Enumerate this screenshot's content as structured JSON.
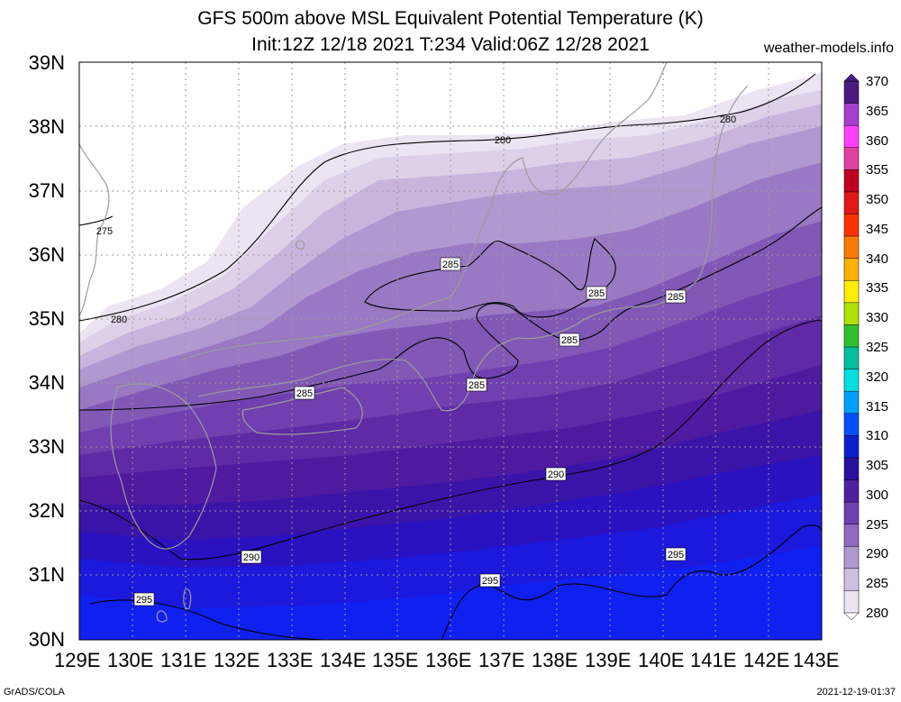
{
  "title_line1": "GFS 500m above MSL Equivalent Potential Temperature (K)",
  "title_line2": "Init:12Z 12/18 2021 T:234 Valid:06Z 12/28 2021",
  "credit": "weather-models.info",
  "lat_labels": [
    "39N",
    "38N",
    "37N",
    "36N",
    "35N",
    "34N",
    "33N",
    "32N",
    "31N",
    "30N"
  ],
  "lon_labels": [
    "129E",
    "130E",
    "131E",
    "132E",
    "133E",
    "134E",
    "135E",
    "136E",
    "137E",
    "138E",
    "139E",
    "140E",
    "141E",
    "142E",
    "143E"
  ],
  "colorbar": {
    "labels": [
      "370",
      "365",
      "360",
      "355",
      "350",
      "345",
      "340",
      "335",
      "330",
      "325",
      "320",
      "315",
      "310",
      "305",
      "300",
      "295",
      "290",
      "285",
      "280"
    ],
    "colors": [
      "#4b1a80",
      "#a63fd0",
      "#ff40ff",
      "#e040a0",
      "#c00020",
      "#e01818",
      "#ff3000",
      "#ff7a00",
      "#ffb000",
      "#ffee00",
      "#b0e000",
      "#30c030",
      "#00c0a0",
      "#00e0e0",
      "#00a0ff",
      "#0050ff",
      "#0a20d0",
      "#2a10a0",
      "#5020a0",
      "#7040b0",
      "#9068c0",
      "#b098d0",
      "#d0c0e0",
      "#ece4f2"
    ]
  },
  "contour_labels": [
    "275",
    "280",
    "280",
    "280",
    "285",
    "285",
    "285",
    "285",
    "285",
    "285",
    "290",
    "290",
    "295",
    "295",
    "295"
  ],
  "footer_left": "GrADS/COLA",
  "footer_right": "2021-12-19-01:37"
}
